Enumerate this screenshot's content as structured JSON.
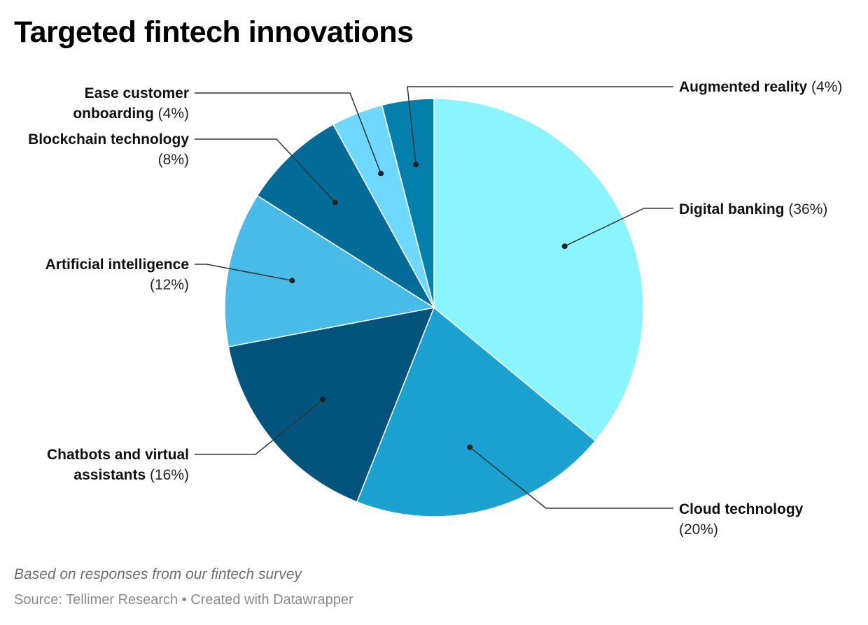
{
  "chart_data": {
    "type": "pie",
    "title": "Targeted fintech innovations",
    "notes": "Based on responses from our fintech survey",
    "source": "Source: Tellimer Research",
    "credit": "Created with Datawrapper",
    "slices": [
      {
        "label": "Digital banking",
        "value": 36,
        "value_label": "(36%)",
        "color": "#8af4ff"
      },
      {
        "label": "Cloud technology",
        "value": 20,
        "value_label": "(20%)",
        "color": "#1aa1cf"
      },
      {
        "label": "Chatbots and virtual assistants",
        "value": 16,
        "value_label": "(16%)",
        "color": "#02547c"
      },
      {
        "label": "Artificial intelligence",
        "value": 12,
        "value_label": "(12%)",
        "color": "#48bbe8"
      },
      {
        "label": "Blockchain technology",
        "value": 8,
        "value_label": "(8%)",
        "color": "#026b97"
      },
      {
        "label": "Ease customer onboarding",
        "value": 4,
        "value_label": "(4%)",
        "color": "#6fd8ff"
      },
      {
        "label": "Augmented reality",
        "value": 4,
        "value_label": "(4%)",
        "color": "#0280ab"
      }
    ]
  }
}
